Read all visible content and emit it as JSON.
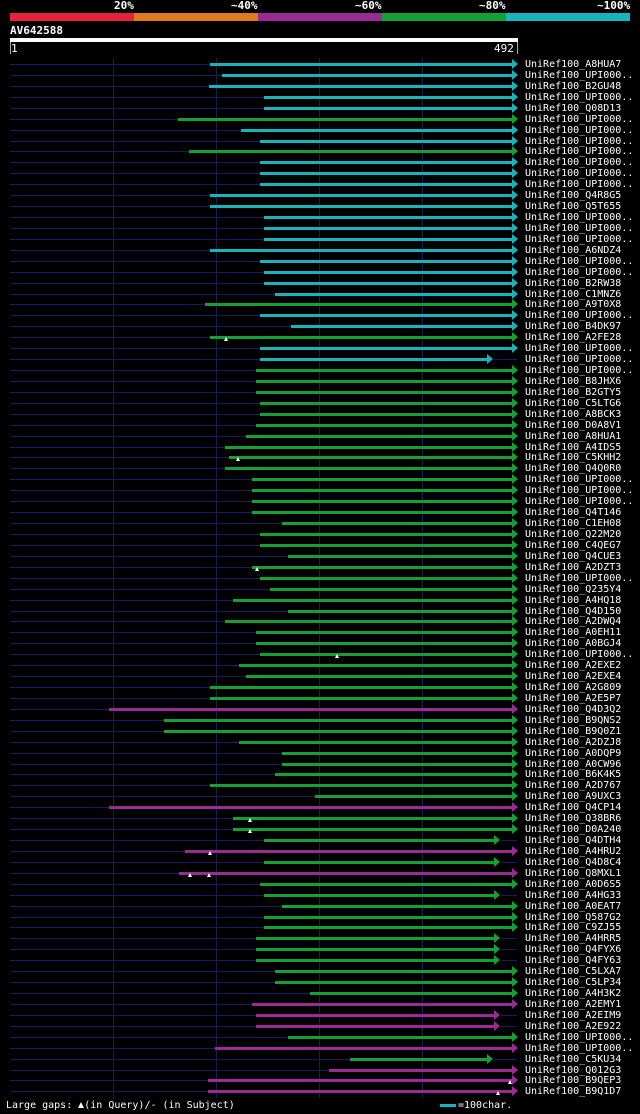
{
  "scale": {
    "labels": [
      "20%",
      "~40%",
      "~60%",
      "~80%",
      "~100%"
    ],
    "colors": [
      "#e8203a",
      "#e07a1b",
      "#9a2a96",
      "#15a035",
      "#18b4bd"
    ]
  },
  "query": {
    "name": "AV642588",
    "start": "1",
    "end": "492",
    "length": 492
  },
  "legend": {
    "prefix": "Large gaps: ",
    "in_query": "(in Query)/- (in Subject)",
    "scale_note": "=100char."
  },
  "hits": [
    {
      "name": "UniRef100_A8HUA7",
      "s": 195,
      "e": 492,
      "c": "#18b4bd",
      "a": 1
    },
    {
      "name": "UniRef100_UPI000..",
      "s": 206,
      "e": 492,
      "c": "#18b4bd",
      "a": 1
    },
    {
      "name": "UniRef100_B2GU48",
      "s": 194,
      "e": 492,
      "c": "#18b4bd",
      "a": 1
    },
    {
      "name": "UniRef100_UPI000..",
      "s": 247,
      "e": 492,
      "c": "#18b4bd",
      "a": 1
    },
    {
      "name": "UniRef100_Q08D13",
      "s": 247,
      "e": 492,
      "c": "#18b4bd",
      "a": 1
    },
    {
      "name": "UniRef100_UPI000..",
      "s": 164,
      "e": 492,
      "c": "#15a035",
      "a": 1
    },
    {
      "name": "UniRef100_UPI000..",
      "s": 225,
      "e": 492,
      "c": "#18b4bd",
      "a": 1
    },
    {
      "name": "UniRef100_UPI000..",
      "s": 243,
      "e": 492,
      "c": "#18b4bd",
      "a": 1
    },
    {
      "name": "UniRef100_UPI000..",
      "s": 174,
      "e": 492,
      "c": "#15a035",
      "a": 1
    },
    {
      "name": "UniRef100_UPI000..",
      "s": 243,
      "e": 492,
      "c": "#18b4bd",
      "a": 1
    },
    {
      "name": "UniRef100_UPI000..",
      "s": 243,
      "e": 492,
      "c": "#18b4bd",
      "a": 1
    },
    {
      "name": "UniRef100_UPI000..",
      "s": 243,
      "e": 492,
      "c": "#18b4bd",
      "a": 1
    },
    {
      "name": "UniRef100_Q4R8G5",
      "s": 195,
      "e": 492,
      "c": "#18b4bd",
      "a": 1
    },
    {
      "name": "UniRef100_Q5T655",
      "s": 195,
      "e": 492,
      "c": "#18b4bd",
      "a": 1
    },
    {
      "name": "UniRef100_UPI000..",
      "s": 247,
      "e": 492,
      "c": "#18b4bd",
      "a": 1
    },
    {
      "name": "UniRef100_UPI000..",
      "s": 247,
      "e": 492,
      "c": "#18b4bd",
      "a": 1
    },
    {
      "name": "UniRef100_UPI000..",
      "s": 247,
      "e": 492,
      "c": "#18b4bd",
      "a": 1
    },
    {
      "name": "UniRef100_A6NDZ4",
      "s": 195,
      "e": 492,
      "c": "#18b4bd",
      "a": 1
    },
    {
      "name": "UniRef100_UPI000..",
      "s": 243,
      "e": 492,
      "c": "#18b4bd",
      "a": 1
    },
    {
      "name": "UniRef100_UPI000..",
      "s": 247,
      "e": 492,
      "c": "#18b4bd",
      "a": 1
    },
    {
      "name": "UniRef100_B2RW38",
      "s": 247,
      "e": 492,
      "c": "#18b4bd",
      "a": 1
    },
    {
      "name": "UniRef100_C1MNZ6",
      "s": 258,
      "e": 492,
      "c": "#18b4bd",
      "a": 1
    },
    {
      "name": "UniRef100_A9T0X8",
      "s": 190,
      "e": 492,
      "c": "#15a035",
      "a": 1
    },
    {
      "name": "UniRef100_UPI000..",
      "s": 243,
      "e": 492,
      "c": "#18b4bd",
      "a": 1
    },
    {
      "name": "UniRef100_B4DK97",
      "s": 273,
      "e": 492,
      "c": "#18b4bd",
      "a": 1
    },
    {
      "name": "UniRef100_A2FE28",
      "s": 195,
      "e": 492,
      "c": "#15a035",
      "a": 1,
      "g": [
        210
      ]
    },
    {
      "name": "UniRef100_UPI000..",
      "s": 243,
      "e": 492,
      "c": "#18b4bd",
      "a": 1
    },
    {
      "name": "UniRef100_UPI000..",
      "s": 243,
      "e": 468,
      "c": "#18b4bd",
      "a": 1
    },
    {
      "name": "UniRef100_UPI000..",
      "s": 239,
      "e": 492,
      "c": "#15a035",
      "a": 1
    },
    {
      "name": "UniRef100_B8JHX6",
      "s": 239,
      "e": 492,
      "c": "#15a035",
      "a": 1
    },
    {
      "name": "UniRef100_B2GTY5",
      "s": 239,
      "e": 492,
      "c": "#15a035",
      "a": 1
    },
    {
      "name": "UniRef100_C5LTG6",
      "s": 243,
      "e": 492,
      "c": "#15a035",
      "a": 1
    },
    {
      "name": "UniRef100_A8BCK3",
      "s": 243,
      "e": 492,
      "c": "#15a035",
      "a": 1
    },
    {
      "name": "UniRef100_D0A8V1",
      "s": 239,
      "e": 492,
      "c": "#15a035",
      "a": 1
    },
    {
      "name": "UniRef100_A8HUA1",
      "s": 230,
      "e": 492,
      "c": "#15a035",
      "a": 1
    },
    {
      "name": "UniRef100_A4IDS5",
      "s": 209,
      "e": 492,
      "c": "#15a035",
      "a": 1
    },
    {
      "name": "UniRef100_C5KHH2",
      "s": 213,
      "e": 492,
      "c": "#15a035",
      "a": 1,
      "g": [
        222
      ]
    },
    {
      "name": "UniRef100_Q4Q0R0",
      "s": 209,
      "e": 492,
      "c": "#15a035",
      "a": 1
    },
    {
      "name": "UniRef100_UPI000..",
      "s": 235,
      "e": 492,
      "c": "#15a035",
      "a": 1
    },
    {
      "name": "UniRef100_UPI000..",
      "s": 235,
      "e": 492,
      "c": "#15a035",
      "a": 1
    },
    {
      "name": "UniRef100_UPI000..",
      "s": 235,
      "e": 492,
      "c": "#15a035",
      "a": 1
    },
    {
      "name": "UniRef100_Q4T146",
      "s": 235,
      "e": 492,
      "c": "#15a035",
      "a": 1
    },
    {
      "name": "UniRef100_C1EH08",
      "s": 264,
      "e": 492,
      "c": "#15a035",
      "a": 1
    },
    {
      "name": "UniRef100_Q22M20",
      "s": 243,
      "e": 492,
      "c": "#15a035",
      "a": 1
    },
    {
      "name": "UniRef100_C4QEG7",
      "s": 243,
      "e": 492,
      "c": "#15a035",
      "a": 1
    },
    {
      "name": "UniRef100_Q4CUE3",
      "s": 270,
      "e": 492,
      "c": "#15a035",
      "a": 1
    },
    {
      "name": "UniRef100_A2DZT3",
      "s": 235,
      "e": 492,
      "c": "#15a035",
      "a": 1,
      "g": [
        240
      ]
    },
    {
      "name": "UniRef100_UPI000..",
      "s": 243,
      "e": 492,
      "c": "#15a035",
      "a": 1
    },
    {
      "name": "UniRef100_Q235Y4",
      "s": 253,
      "e": 492,
      "c": "#15a035",
      "a": 1
    },
    {
      "name": "UniRef100_A4HQ18",
      "s": 217,
      "e": 492,
      "c": "#15a035",
      "a": 1
    },
    {
      "name": "UniRef100_Q4D150",
      "s": 270,
      "e": 492,
      "c": "#15a035",
      "a": 1
    },
    {
      "name": "UniRef100_A2DWQ4",
      "s": 209,
      "e": 492,
      "c": "#15a035",
      "a": 1
    },
    {
      "name": "UniRef100_A0EH11",
      "s": 239,
      "e": 492,
      "c": "#15a035",
      "a": 1
    },
    {
      "name": "UniRef100_A0BGJ4",
      "s": 239,
      "e": 492,
      "c": "#15a035",
      "a": 1
    },
    {
      "name": "UniRef100_UPI000..",
      "s": 243,
      "e": 492,
      "c": "#15a035",
      "a": 1,
      "g": [
        318
      ]
    },
    {
      "name": "UniRef100_A2EXE2",
      "s": 223,
      "e": 492,
      "c": "#15a035",
      "a": 1
    },
    {
      "name": "UniRef100_A2EXE4",
      "s": 230,
      "e": 492,
      "c": "#15a035",
      "a": 1
    },
    {
      "name": "UniRef100_A2G809",
      "s": 195,
      "e": 492,
      "c": "#15a035",
      "a": 1
    },
    {
      "name": "UniRef100_A2E5P7",
      "s": 195,
      "e": 492,
      "c": "#15a035",
      "a": 1
    },
    {
      "name": "UniRef100_Q4D3Q2",
      "s": 97,
      "e": 492,
      "c": "#9a2a96",
      "a": 1
    },
    {
      "name": "UniRef100_B9QNS2",
      "s": 150,
      "e": 492,
      "c": "#15a035",
      "a": 1
    },
    {
      "name": "UniRef100_B9Q0Z1",
      "s": 150,
      "e": 492,
      "c": "#15a035",
      "a": 1
    },
    {
      "name": "UniRef100_A2DZJ8",
      "s": 223,
      "e": 492,
      "c": "#15a035",
      "a": 1
    },
    {
      "name": "UniRef100_A0DQP9",
      "s": 264,
      "e": 492,
      "c": "#15a035",
      "a": 1
    },
    {
      "name": "UniRef100_A0CW96",
      "s": 264,
      "e": 492,
      "c": "#15a035",
      "a": 1
    },
    {
      "name": "UniRef100_B6K4K5",
      "s": 258,
      "e": 492,
      "c": "#15a035",
      "a": 1
    },
    {
      "name": "UniRef100_A2D767",
      "s": 195,
      "e": 492,
      "c": "#15a035",
      "a": 1
    },
    {
      "name": "UniRef100_A9UXC3",
      "s": 296,
      "e": 492,
      "c": "#15a035",
      "a": 1
    },
    {
      "name": "UniRef100_Q4CP14",
      "s": 97,
      "e": 492,
      "c": "#9a2a96",
      "a": 1
    },
    {
      "name": "UniRef100_Q38BR6",
      "s": 217,
      "e": 492,
      "c": "#15a035",
      "a": 1,
      "g": [
        233
      ]
    },
    {
      "name": "UniRef100_D0A240",
      "s": 217,
      "e": 492,
      "c": "#15a035",
      "a": 1,
      "g": [
        233
      ]
    },
    {
      "name": "UniRef100_Q4DTH4",
      "s": 247,
      "e": 475,
      "c": "#15a035",
      "a": 1
    },
    {
      "name": "UniRef100_A4HRU2",
      "s": 170,
      "e": 492,
      "c": "#9a2a96",
      "a": 1,
      "g": [
        195
      ]
    },
    {
      "name": "UniRef100_Q4D8C4",
      "s": 247,
      "e": 475,
      "c": "#15a035",
      "a": 1
    },
    {
      "name": "UniRef100_Q8MXL1",
      "s": 165,
      "e": 492,
      "c": "#9a2a96",
      "a": 1,
      "g": [
        175,
        194
      ]
    },
    {
      "name": "UniRef100_A0D6S5",
      "s": 243,
      "e": 492,
      "c": "#15a035",
      "a": 1
    },
    {
      "name": "UniRef100_A4HG33",
      "s": 247,
      "e": 475,
      "c": "#15a035",
      "a": 1
    },
    {
      "name": "UniRef100_A0EAT7",
      "s": 264,
      "e": 492,
      "c": "#15a035",
      "a": 1
    },
    {
      "name": "UniRef100_Q587G2",
      "s": 247,
      "e": 492,
      "c": "#15a035",
      "a": 1
    },
    {
      "name": "UniRef100_C9ZJ55",
      "s": 247,
      "e": 492,
      "c": "#15a035",
      "a": 1
    },
    {
      "name": "UniRef100_A4HRR5",
      "s": 239,
      "e": 475,
      "c": "#15a035",
      "a": 1
    },
    {
      "name": "UniRef100_Q4FYX6",
      "s": 239,
      "e": 475,
      "c": "#15a035",
      "a": 1
    },
    {
      "name": "UniRef100_Q4FY63",
      "s": 239,
      "e": 475,
      "c": "#15a035",
      "a": 1
    },
    {
      "name": "UniRef100_C5LXA7",
      "s": 258,
      "e": 492,
      "c": "#15a035",
      "a": 1
    },
    {
      "name": "UniRef100_C5LP34",
      "s": 258,
      "e": 492,
      "c": "#15a035",
      "a": 1
    },
    {
      "name": "UniRef100_A4H3K2",
      "s": 292,
      "e": 492,
      "c": "#15a035",
      "a": 1
    },
    {
      "name": "UniRef100_A2EMY1",
      "s": 235,
      "e": 492,
      "c": "#9a2a96",
      "a": 1
    },
    {
      "name": "UniRef100_A2EIM9",
      "s": 239,
      "e": 475,
      "c": "#9a2a96",
      "a": 1
    },
    {
      "name": "UniRef100_A2E922",
      "s": 239,
      "e": 475,
      "c": "#9a2a96",
      "a": 1
    },
    {
      "name": "UniRef100_UPI000..",
      "s": 270,
      "e": 492,
      "c": "#15a035",
      "a": 1
    },
    {
      "name": "UniRef100_UPI000..",
      "s": 200,
      "e": 492,
      "c": "#9a2a96",
      "a": 1
    },
    {
      "name": "UniRef100_C5KU34",
      "s": 330,
      "e": 468,
      "c": "#15a035",
      "a": 1
    },
    {
      "name": "UniRef100_Q012G3",
      "s": 310,
      "e": 492,
      "c": "#9a2a96",
      "a": 1
    },
    {
      "name": "UniRef100_B9QEP3",
      "s": 193,
      "e": 492,
      "c": "#9a2a96",
      "a": 1,
      "g": [
        485
      ]
    },
    {
      "name": "UniRef100_B9Q1D7",
      "s": 193,
      "e": 492,
      "c": "#9a2a96",
      "a": 1,
      "g": [
        474
      ]
    }
  ]
}
